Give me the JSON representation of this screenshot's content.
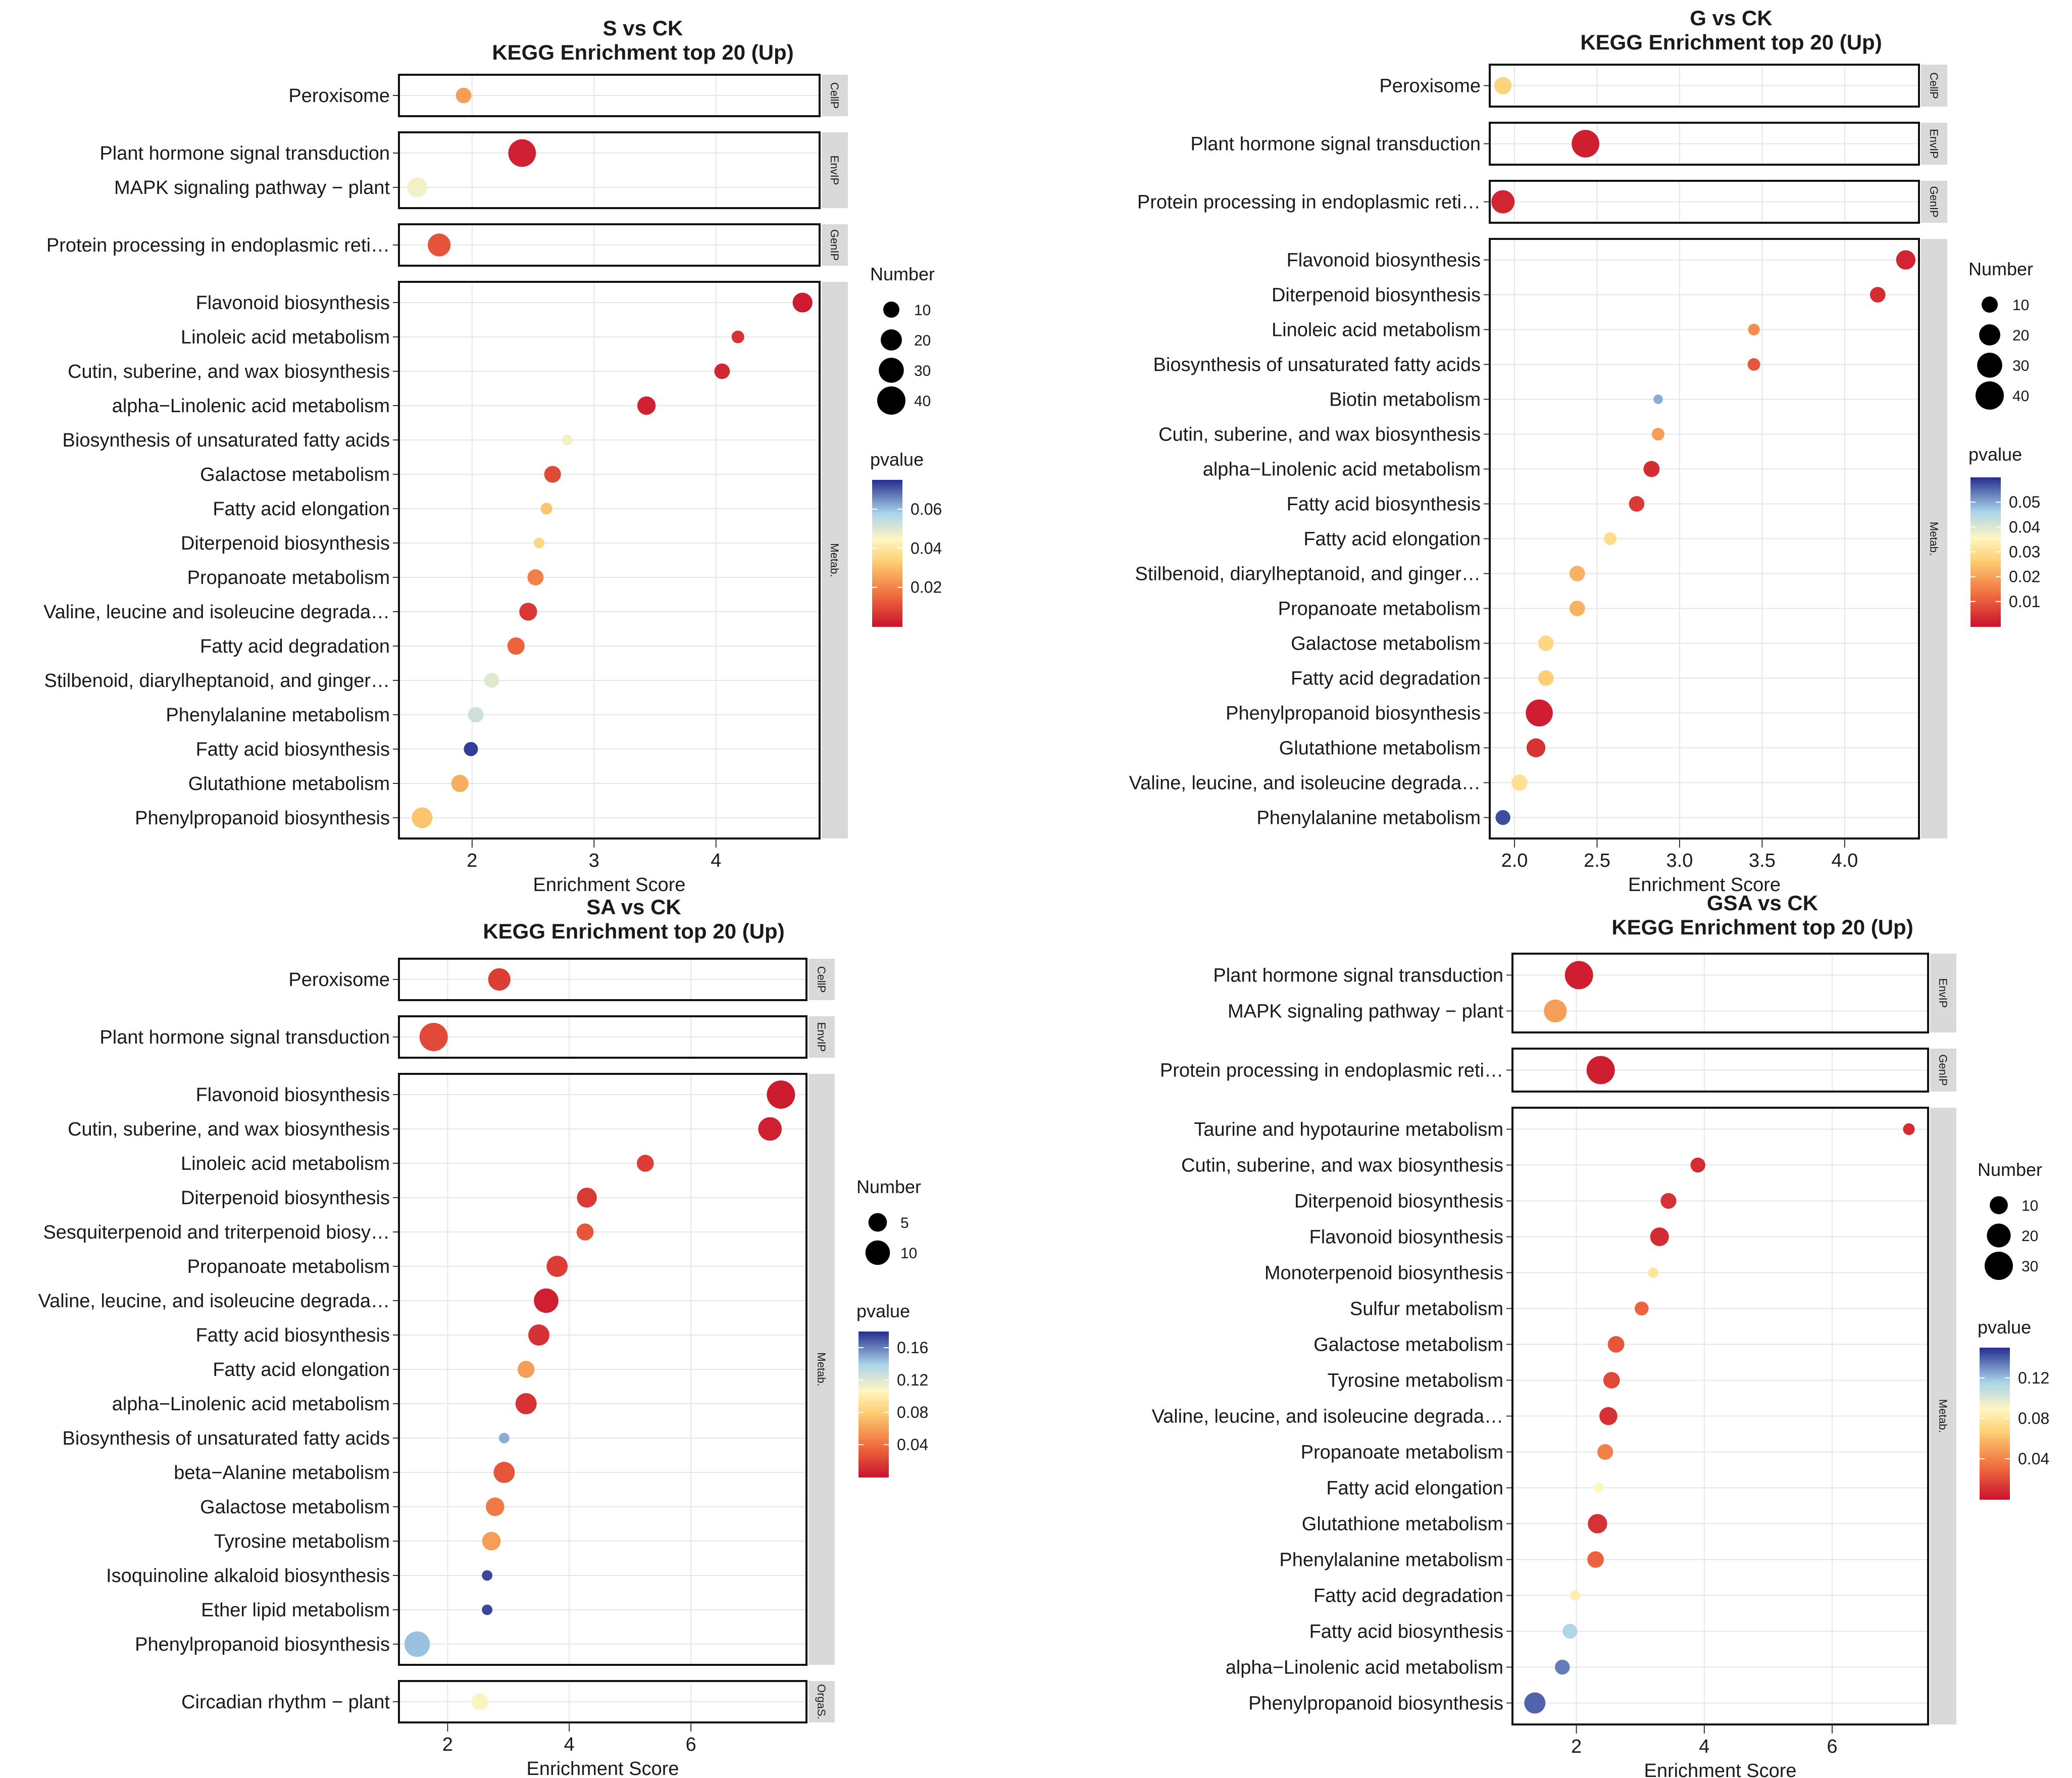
{
  "chart_data": [
    {
      "type": "scatter",
      "title": "S vs CK",
      "subtitle": "KEGG Enrichment top 20 (Up)",
      "xlabel": "Enrichment Score",
      "xlim": [
        1.4,
        4.85
      ],
      "xticks": [
        2,
        3,
        4
      ],
      "xtick_labels": [
        "2",
        "3",
        "4"
      ],
      "size_legend": {
        "title": "Number",
        "values": [
          10,
          20,
          30,
          40
        ],
        "labels": [
          "10",
          "20",
          "30",
          "40"
        ]
      },
      "color_legend": {
        "title": "pvalue",
        "range": [
          0.0,
          0.075
        ],
        "ticks": [
          0.06,
          0.04,
          0.02
        ],
        "tick_labels": [
          "0.06",
          "0.04",
          "0.02"
        ]
      },
      "groups": [
        {
          "label": "CellP",
          "terms": [
            {
              "name": "Peroxisome",
              "x": 1.93,
              "count": 9,
              "p": 0.025
            }
          ]
        },
        {
          "label": "EnvIP",
          "terms": [
            {
              "name": "Plant hormone signal transduction",
              "x": 2.41,
              "count": 38,
              "p": 0.003
            },
            {
              "name": "MAPK signaling pathway − plant",
              "x": 1.55,
              "count": 17,
              "p": 0.047
            }
          ]
        },
        {
          "label": "GenIP",
          "terms": [
            {
              "name": "Protein processing in endoplasmic reti…",
              "x": 1.73,
              "count": 24,
              "p": 0.012
            }
          ]
        },
        {
          "label": "Metab.",
          "terms": [
            {
              "name": "Flavonoid biosynthesis",
              "x": 4.71,
              "count": 17,
              "p": 0.002
            },
            {
              "name": "Linoleic acid metabolism",
              "x": 4.18,
              "count": 5,
              "p": 0.006
            },
            {
              "name": "Cutin, suberine, and wax biosynthesis",
              "x": 4.05,
              "count": 9,
              "p": 0.004
            },
            {
              "name": "alpha−Linolenic acid metabolism",
              "x": 3.43,
              "count": 14,
              "p": 0.003
            },
            {
              "name": "Biosynthesis of unsaturated fatty acids",
              "x": 2.78,
              "count": 3,
              "p": 0.047
            },
            {
              "name": "Galactose metabolism",
              "x": 2.66,
              "count": 11,
              "p": 0.01
            },
            {
              "name": "Fatty acid elongation",
              "x": 2.61,
              "count": 4,
              "p": 0.032
            },
            {
              "name": "Diterpenoid biosynthesis",
              "x": 2.55,
              "count": 3,
              "p": 0.036
            },
            {
              "name": "Propanoate metabolism",
              "x": 2.52,
              "count": 10,
              "p": 0.02
            },
            {
              "name": "Valine, leucine and isoleucine degrada…",
              "x": 2.46,
              "count": 13,
              "p": 0.007
            },
            {
              "name": "Fatty acid degradation",
              "x": 2.36,
              "count": 12,
              "p": 0.015
            },
            {
              "name": "Stilbenoid, diarylheptanoid, and ginger…",
              "x": 2.16,
              "count": 8,
              "p": 0.05
            },
            {
              "name": "Phenylalanine metabolism",
              "x": 2.03,
              "count": 9,
              "p": 0.053
            },
            {
              "name": "Fatty acid biosynthesis",
              "x": 1.99,
              "count": 7,
              "p": 0.074
            },
            {
              "name": "Glutathione metabolism",
              "x": 1.9,
              "count": 12,
              "p": 0.028
            },
            {
              "name": "Phenylpropanoid biosynthesis",
              "x": 1.59,
              "count": 19,
              "p": 0.032
            }
          ]
        }
      ]
    },
    {
      "type": "scatter",
      "title": "G vs CK",
      "subtitle": "KEGG Enrichment top 20 (Up)",
      "xlabel": "Enrichment Score",
      "xlim": [
        1.85,
        4.45
      ],
      "xticks": [
        2.0,
        2.5,
        3.0,
        3.5,
        4.0
      ],
      "xtick_labels": [
        "2.0",
        "2.5",
        "3.0",
        "3.5",
        "4.0"
      ],
      "size_legend": {
        "title": "Number",
        "values": [
          10,
          20,
          30,
          40
        ],
        "labels": [
          "10",
          "20",
          "30",
          "40"
        ]
      },
      "color_legend": {
        "title": "pvalue",
        "range": [
          0.0,
          0.06
        ],
        "ticks": [
          0.05,
          0.04,
          0.03,
          0.02,
          0.01
        ],
        "tick_labels": [
          "0.05",
          "0.04",
          "0.03",
          "0.02",
          "0.01"
        ]
      },
      "groups": [
        {
          "label": "CellP",
          "terms": [
            {
              "name": "Peroxisome",
              "x": 1.93,
              "count": 12,
              "p": 0.028
            }
          ]
        },
        {
          "label": "EnvIP",
          "terms": [
            {
              "name": "Plant hormone signal transduction",
              "x": 2.43,
              "count": 38,
              "p": 0.002
            }
          ]
        },
        {
          "label": "GenIP",
          "terms": [
            {
              "name": "Protein processing in endoplasmic reti…",
              "x": 1.93,
              "count": 25,
              "p": 0.003
            }
          ]
        },
        {
          "label": "Metab.",
          "terms": [
            {
              "name": "Flavonoid biosynthesis",
              "x": 4.37,
              "count": 16,
              "p": 0.003
            },
            {
              "name": "Diterpenoid biosynthesis",
              "x": 4.2,
              "count": 9,
              "p": 0.004
            },
            {
              "name": "Linoleic acid metabolism",
              "x": 3.45,
              "count": 4,
              "p": 0.018
            },
            {
              "name": "Biosynthesis of unsaturated fatty acids",
              "x": 3.45,
              "count": 5,
              "p": 0.01
            },
            {
              "name": "Biotin metabolism",
              "x": 2.87,
              "count": 2,
              "p": 0.05
            },
            {
              "name": "Cutin, suberine, and wax biosynthesis",
              "x": 2.87,
              "count": 5,
              "p": 0.02
            },
            {
              "name": "alpha−Linolenic acid metabolism",
              "x": 2.83,
              "count": 10,
              "p": 0.004
            },
            {
              "name": "Fatty acid biosynthesis",
              "x": 2.74,
              "count": 9,
              "p": 0.006
            },
            {
              "name": "Fatty acid elongation",
              "x": 2.58,
              "count": 5,
              "p": 0.03
            },
            {
              "name": "Stilbenoid, diarylheptanoid, and ginger…",
              "x": 2.38,
              "count": 9,
              "p": 0.023
            },
            {
              "name": "Propanoate metabolism",
              "x": 2.38,
              "count": 9,
              "p": 0.023
            },
            {
              "name": "Galactose metabolism",
              "x": 2.19,
              "count": 9,
              "p": 0.029
            },
            {
              "name": "Fatty acid degradation",
              "x": 2.19,
              "count": 9,
              "p": 0.027
            },
            {
              "name": "Phenylpropanoid biosynthesis",
              "x": 2.15,
              "count": 36,
              "p": 0.002
            },
            {
              "name": "Glutathione metabolism",
              "x": 2.13,
              "count": 15,
              "p": 0.005
            },
            {
              "name": "Valine, leucine, and isoleucine degrada…",
              "x": 2.03,
              "count": 10,
              "p": 0.031
            },
            {
              "name": "Phenylalanine metabolism",
              "x": 1.93,
              "count": 8,
              "p": 0.058
            }
          ]
        }
      ]
    },
    {
      "type": "scatter",
      "title": "SA vs CK",
      "subtitle": "KEGG Enrichment top 20 (Up)",
      "xlabel": "Enrichment Score",
      "xlim": [
        1.2,
        7.9
      ],
      "xticks": [
        2,
        4,
        6
      ],
      "xtick_labels": [
        "2",
        "4",
        "6"
      ],
      "size_legend": {
        "title": "Number",
        "values": [
          5,
          10
        ],
        "labels": [
          "5",
          "10"
        ]
      },
      "color_legend": {
        "title": "pvalue",
        "range": [
          0.0,
          0.18
        ],
        "ticks": [
          0.16,
          0.12,
          0.08,
          0.04
        ],
        "tick_labels": [
          "0.16",
          "0.12",
          "0.08",
          "0.04"
        ]
      },
      "groups": [
        {
          "label": "CellP",
          "terms": [
            {
              "name": "Peroxisome",
              "x": 2.85,
              "count": 8,
              "p": 0.02
            }
          ]
        },
        {
          "label": "EnvIP",
          "terms": [
            {
              "name": "Plant hormone signal transduction",
              "x": 1.77,
              "count": 14,
              "p": 0.025
            }
          ]
        },
        {
          "label": "Metab.",
          "terms": [
            {
              "name": "Flavonoid biosynthesis",
              "x": 7.48,
              "count": 14,
              "p": 0.005
            },
            {
              "name": "Cutin, suberine, and wax biosynthesis",
              "x": 7.3,
              "count": 9,
              "p": 0.007
            },
            {
              "name": "Linoleic acid metabolism",
              "x": 5.25,
              "count": 4,
              "p": 0.02
            },
            {
              "name": "Diterpenoid biosynthesis",
              "x": 4.29,
              "count": 6,
              "p": 0.018
            },
            {
              "name": "Sesquiterpenoid and triterpenoid biosy…",
              "x": 4.26,
              "count": 4,
              "p": 0.03
            },
            {
              "name": "Propanoate metabolism",
              "x": 3.8,
              "count": 7,
              "p": 0.02
            },
            {
              "name": "Valine, leucine, and isoleucine degrada…",
              "x": 3.62,
              "count": 10,
              "p": 0.007
            },
            {
              "name": "Fatty acid biosynthesis",
              "x": 3.5,
              "count": 7,
              "p": 0.014
            },
            {
              "name": "Fatty acid elongation",
              "x": 3.29,
              "count": 4,
              "p": 0.06
            },
            {
              "name": "alpha−Linolenic acid metabolism",
              "x": 3.29,
              "count": 7,
              "p": 0.015
            },
            {
              "name": "Biosynthesis of unsaturated fatty acids",
              "x": 2.93,
              "count": 1,
              "p": 0.15
            },
            {
              "name": "beta−Alanine metabolism",
              "x": 2.93,
              "count": 7,
              "p": 0.03
            },
            {
              "name": "Galactose metabolism",
              "x": 2.78,
              "count": 5,
              "p": 0.045
            },
            {
              "name": "Tyrosine metabolism",
              "x": 2.72,
              "count": 5,
              "p": 0.06
            },
            {
              "name": "Isoquinoline alkaloid biosynthesis",
              "x": 2.65,
              "count": 1,
              "p": 0.175
            },
            {
              "name": "Ether lipid metabolism",
              "x": 2.65,
              "count": 1,
              "p": 0.175
            },
            {
              "name": "Phenylpropanoid biosynthesis",
              "x": 1.5,
              "count": 11,
              "p": 0.145
            }
          ]
        },
        {
          "label": "OrgaS.",
          "terms": [
            {
              "name": "Circadian rhythm − plant",
              "x": 2.53,
              "count": 4,
              "p": 0.11
            }
          ]
        }
      ]
    },
    {
      "type": "scatter",
      "title": "GSA vs CK",
      "subtitle": "KEGG Enrichment top 20 (Up)",
      "xlabel": "Enrichment Score",
      "xlim": [
        1.0,
        7.5
      ],
      "xticks": [
        2,
        4,
        6
      ],
      "xtick_labels": [
        "2",
        "4",
        "6"
      ],
      "size_legend": {
        "title": "Number",
        "values": [
          10,
          20,
          30
        ],
        "labels": [
          "10",
          "20",
          "30"
        ]
      },
      "color_legend": {
        "title": "pvalue",
        "range": [
          0.0,
          0.15
        ],
        "ticks": [
          0.12,
          0.08,
          0.04
        ],
        "tick_labels": [
          "0.12",
          "0.08",
          "0.04"
        ]
      },
      "groups": [
        {
          "label": "EnvIP",
          "terms": [
            {
              "name": "Plant hormone signal transduction",
              "x": 2.04,
              "count": 30,
              "p": 0.005
            },
            {
              "name": "MAPK signaling pathway − plant",
              "x": 1.67,
              "count": 18,
              "p": 0.05
            }
          ]
        },
        {
          "label": "GenIP",
          "terms": [
            {
              "name": "Protein processing in endoplasmic reti…",
              "x": 2.38,
              "count": 30,
              "p": 0.005
            }
          ]
        },
        {
          "label": "Metab.",
          "terms": [
            {
              "name": "Taurine and hypotaurine metabolism",
              "x": 7.2,
              "count": 3,
              "p": 0.01
            },
            {
              "name": "Cutin, suberine, and wax biosynthesis",
              "x": 3.9,
              "count": 6,
              "p": 0.01
            },
            {
              "name": "Diterpenoid biosynthesis",
              "x": 3.44,
              "count": 7,
              "p": 0.012
            },
            {
              "name": "Flavonoid biosynthesis",
              "x": 3.3,
              "count": 11,
              "p": 0.01
            },
            {
              "name": "Monoterpenoid biosynthesis",
              "x": 3.2,
              "count": 2,
              "p": 0.08
            },
            {
              "name": "Sulfur metabolism",
              "x": 3.02,
              "count": 5,
              "p": 0.03
            },
            {
              "name": "Galactose metabolism",
              "x": 2.62,
              "count": 8,
              "p": 0.025
            },
            {
              "name": "Tyrosine metabolism",
              "x": 2.55,
              "count": 8,
              "p": 0.02
            },
            {
              "name": "Valine, leucine, and isoleucine degrada…",
              "x": 2.5,
              "count": 10,
              "p": 0.012
            },
            {
              "name": "Propanoate metabolism",
              "x": 2.45,
              "count": 7,
              "p": 0.04
            },
            {
              "name": "Fatty acid elongation",
              "x": 2.35,
              "count": 2,
              "p": 0.09
            },
            {
              "name": "Glutathione metabolism",
              "x": 2.33,
              "count": 12,
              "p": 0.012
            },
            {
              "name": "Phenylalanine metabolism",
              "x": 2.3,
              "count": 8,
              "p": 0.03
            },
            {
              "name": "Fatty acid degradation",
              "x": 1.98,
              "count": 2,
              "p": 0.085
            },
            {
              "name": "Fatty acid biosynthesis",
              "x": 1.9,
              "count": 6,
              "p": 0.115
            },
            {
              "name": "alpha−Linolenic acid metabolism",
              "x": 1.78,
              "count": 6,
              "p": 0.135
            },
            {
              "name": "Phenylpropanoid biosynthesis",
              "x": 1.35,
              "count": 15,
              "p": 0.14
            }
          ]
        }
      ]
    }
  ]
}
